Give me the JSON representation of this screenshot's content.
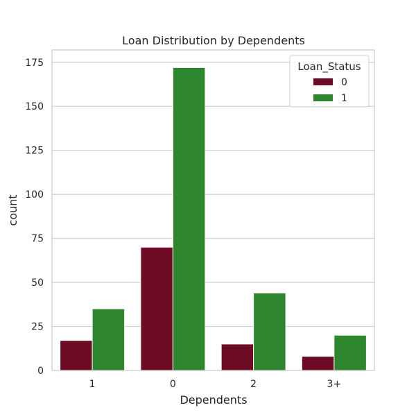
{
  "chart_data": {
    "type": "bar",
    "title": "Loan Distribution by Dependents",
    "xlabel": "Dependents",
    "ylabel": "count",
    "categories": [
      "1",
      "0",
      "2",
      "3+"
    ],
    "series": [
      {
        "name": "0",
        "values": [
          17,
          70,
          15,
          8
        ],
        "color": "#6e0b24"
      },
      {
        "name": "1",
        "values": [
          35,
          172,
          44,
          20
        ],
        "color": "#2e862e"
      }
    ],
    "ylim": [
      0,
      182
    ],
    "yticks": [
      0,
      25,
      50,
      75,
      100,
      125,
      150,
      175
    ],
    "grid": true,
    "legend": {
      "title": "Loan_Status",
      "placement": "top-right"
    },
    "grid_color": "#cccccc",
    "frame_color": "#cccccc"
  }
}
